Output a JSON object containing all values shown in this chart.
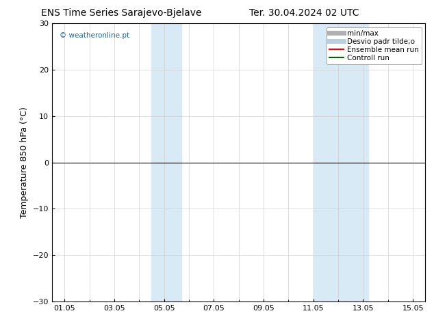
{
  "title_left": "ENS Time Series Sarajevo-Bjelave",
  "title_right": "Ter. 30.04.2024 02 UTC",
  "ylabel": "Temperature 850 hPa (°C)",
  "ylim": [
    -30,
    30
  ],
  "yticks": [
    -30,
    -20,
    -10,
    0,
    10,
    20,
    30
  ],
  "xlim": [
    0.5,
    15.5
  ],
  "xtick_labels": [
    "01.05",
    "03.05",
    "05.05",
    "07.05",
    "09.05",
    "11.05",
    "13.05",
    "15.05"
  ],
  "xtick_positions_day": [
    1,
    3,
    5,
    7,
    9,
    11,
    13,
    15
  ],
  "shaded_bands": [
    {
      "xstart_day": 4.5,
      "xend_day": 5.7
    },
    {
      "xstart_day": 11.0,
      "xend_day": 13.2
    }
  ],
  "shade_color": "#d8eaf5",
  "background_color": "#ffffff",
  "plot_background": "#ffffff",
  "zero_line_color": "#000000",
  "legend_items": [
    {
      "label": "min/max",
      "color": "#b0b0b0",
      "lw": 5,
      "ls": "-"
    },
    {
      "label": "Desvio padr tilde;o",
      "color": "#b8cfe0",
      "lw": 5,
      "ls": "-"
    },
    {
      "label": "Ensemble mean run",
      "color": "#ff0000",
      "lw": 1.5,
      "ls": "-"
    },
    {
      "label": "Controll run",
      "color": "#006400",
      "lw": 1.5,
      "ls": "-"
    }
  ],
  "watermark": "© weatheronline.pt",
  "watermark_color": "#1a6699",
  "title_fontsize": 10,
  "tick_fontsize": 8,
  "ylabel_fontsize": 9,
  "legend_fontsize": 7.5,
  "grid_color": "#d0d0d0",
  "border_color": "#000000",
  "minor_xtick_positions": [
    2,
    4,
    6,
    8,
    10,
    12,
    14
  ]
}
